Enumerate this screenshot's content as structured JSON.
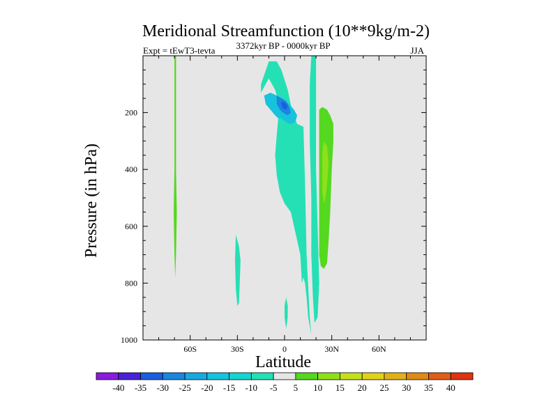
{
  "chart_data": {
    "type": "contour",
    "title": "Meridional Streamfunction (10**9kg/m-2)",
    "left_string": "Expt = tEwT3-tevta",
    "center_string": "3372kyr BP - 0000kyr BP",
    "right_string": "JJA",
    "xlabel": "Latitude",
    "ylabel": "Pressure (in hPa)",
    "xlim": [
      -90,
      90
    ],
    "ylim": [
      1000,
      0
    ],
    "x_ticks": [
      {
        "value": -60,
        "label": "60S"
      },
      {
        "value": -30,
        "label": "30S"
      },
      {
        "value": 0,
        "label": "0"
      },
      {
        "value": 30,
        "label": "30N"
      },
      {
        "value": 60,
        "label": "60N"
      }
    ],
    "y_ticks": [
      {
        "value": 200,
        "label": "200"
      },
      {
        "value": 400,
        "label": "400"
      },
      {
        "value": 600,
        "label": "600"
      },
      {
        "value": 800,
        "label": "800"
      },
      {
        "value": 1000,
        "label": "1000"
      }
    ],
    "background_color": "#e6e6e6",
    "colorbar": {
      "levels": [
        -40,
        -35,
        -30,
        -25,
        -20,
        -15,
        -10,
        -5,
        5,
        10,
        15,
        20,
        25,
        30,
        35,
        40
      ],
      "colors": [
        "#8c1be0",
        "#4a22d6",
        "#1b5ee0",
        "#1a86e0",
        "#18a9e0",
        "#17c2dd",
        "#16d4cf",
        "#25e0b5",
        "#e6e6e6",
        "#55d820",
        "#8fe01c",
        "#c4e01a",
        "#e0d21a",
        "#e0b01a",
        "#e08a18",
        "#e05e16",
        "#e03214"
      ]
    },
    "regions": [
      {
        "name": "negative-cell-outer",
        "value_range": [
          -10,
          -5
        ],
        "color": "#25e0b5",
        "points": [
          [
            -15,
            10
          ],
          [
            -10,
            2
          ],
          [
            -5,
            2
          ],
          [
            -2,
            5
          ],
          [
            2,
            12
          ],
          [
            5,
            20
          ],
          [
            8,
            24
          ],
          [
            12,
            25
          ],
          [
            13,
            45
          ],
          [
            14,
            70
          ],
          [
            16,
            92
          ],
          [
            17,
            98
          ],
          [
            15,
            92
          ],
          [
            14,
            85
          ],
          [
            13,
            80
          ],
          [
            12,
            78
          ],
          [
            11,
            80
          ],
          [
            10,
            70
          ],
          [
            6,
            60
          ],
          [
            4,
            55
          ],
          [
            0,
            52
          ],
          [
            -3,
            48
          ],
          [
            -5,
            42
          ],
          [
            -6,
            35
          ],
          [
            -5,
            28
          ],
          [
            -4,
            22
          ],
          [
            -3,
            18
          ],
          [
            -6,
            12
          ],
          [
            -10,
            8
          ],
          [
            -15,
            13
          ]
        ],
        "ylevels": [
          25,
          20,
          18,
          17,
          20,
          30,
          50,
          60,
          80,
          95,
          96,
          95,
          96,
          85,
          90,
          92,
          88,
          86,
          82,
          80,
          74,
          64,
          55,
          50,
          38,
          30,
          24,
          16,
          12
        ]
      },
      {
        "name": "negative-cell-inner",
        "value_range": [
          -15,
          -10
        ],
        "color": "#17c2dd",
        "points": [
          [
            -13,
            14
          ],
          [
            -9,
            13
          ],
          [
            -5,
            14
          ],
          [
            -1,
            15
          ],
          [
            3,
            17
          ],
          [
            6,
            19
          ],
          [
            8,
            21
          ],
          [
            7,
            23
          ],
          [
            5,
            24
          ],
          [
            3,
            24
          ],
          [
            0,
            23
          ],
          [
            -2,
            22
          ],
          [
            -4,
            22
          ],
          [
            -6,
            21
          ],
          [
            -9,
            19
          ],
          [
            -12,
            17
          ]
        ],
        "ylevels": []
      },
      {
        "name": "negative-cell-core",
        "value_range": [
          -20,
          -15
        ],
        "color": "#1a86e0",
        "points": [
          [
            -5,
            14
          ],
          [
            -2,
            15
          ],
          [
            1,
            16
          ],
          [
            3,
            18
          ],
          [
            4,
            20
          ],
          [
            2,
            21
          ],
          [
            -1,
            20
          ],
          [
            -3,
            19
          ],
          [
            -5,
            17
          ]
        ],
        "ylevels": []
      },
      {
        "name": "negative-cell-peak",
        "value_range": [
          -25,
          -20
        ],
        "color": "#1b5ee0",
        "points": [
          [
            -2,
            16
          ],
          [
            0,
            16.5
          ],
          [
            2,
            17.5
          ],
          [
            1,
            19
          ],
          [
            -1,
            18.5
          ],
          [
            -2,
            17.5
          ]
        ],
        "ylevels": []
      },
      {
        "name": "positive-cell-outer",
        "value_range": [
          5,
          10
        ],
        "color": "#55d820",
        "points": [
          [
            22,
            19
          ],
          [
            24,
            18
          ],
          [
            27,
            19
          ],
          [
            29,
            21
          ],
          [
            31,
            24
          ],
          [
            31,
            30
          ],
          [
            30,
            40
          ],
          [
            29,
            55
          ],
          [
            28,
            65
          ],
          [
            27,
            73
          ],
          [
            25,
            75
          ],
          [
            23,
            74
          ],
          [
            22,
            70
          ],
          [
            22,
            55
          ],
          [
            22,
            40
          ],
          [
            22,
            30
          ],
          [
            22,
            22
          ]
        ],
        "ylevels": []
      },
      {
        "name": "positive-cell-inner",
        "value_range": [
          10,
          15
        ],
        "color": "#8fe01c",
        "points": [
          [
            25,
            30
          ],
          [
            27,
            32
          ],
          [
            28,
            38
          ],
          [
            27,
            45
          ],
          [
            26,
            50
          ],
          [
            25,
            52
          ],
          [
            24,
            48
          ],
          [
            24,
            40
          ],
          [
            24,
            34
          ]
        ],
        "ylevels": []
      },
      {
        "name": "sh-thin-positive",
        "value_range": [
          5,
          10
        ],
        "color": "#55d820",
        "points": [
          [
            -70,
            0
          ],
          [
            -69,
            0
          ],
          [
            -69,
            40
          ],
          [
            -68.5,
            55
          ],
          [
            -69,
            70
          ],
          [
            -69.5,
            78
          ],
          [
            -70,
            70
          ],
          [
            -70.5,
            55
          ],
          [
            -70,
            40
          ]
        ],
        "ylevels": []
      },
      {
        "name": "sh-thin-negative",
        "value_range": [
          -10,
          -5
        ],
        "color": "#25e0b5",
        "points": [
          [
            -31,
            63
          ],
          [
            -29,
            67
          ],
          [
            -28,
            72
          ],
          [
            -28.5,
            80
          ],
          [
            -29,
            87
          ],
          [
            -30,
            88
          ],
          [
            -31,
            82
          ],
          [
            -31.5,
            72
          ]
        ],
        "ylevels": []
      },
      {
        "name": "equatorial-negative",
        "value_range": [
          -10,
          -5
        ],
        "color": "#25e0b5",
        "points": [
          [
            1,
            85
          ],
          [
            2,
            88
          ],
          [
            2,
            92
          ],
          [
            1,
            96
          ],
          [
            0,
            92
          ],
          [
            0,
            88
          ]
        ],
        "ylevels": []
      },
      {
        "name": "nh-thin-negative",
        "value_range": [
          -10,
          -5
        ],
        "color": "#25e0b5",
        "points": [
          [
            17,
            0
          ],
          [
            20,
            0
          ],
          [
            20,
            20
          ],
          [
            20,
            40
          ],
          [
            21,
            60
          ],
          [
            22,
            80
          ],
          [
            21,
            92
          ],
          [
            19,
            94
          ],
          [
            18,
            85
          ],
          [
            17,
            70
          ],
          [
            17,
            50
          ],
          [
            16,
            30
          ],
          [
            16,
            10
          ]
        ],
        "ylevels": []
      }
    ]
  }
}
